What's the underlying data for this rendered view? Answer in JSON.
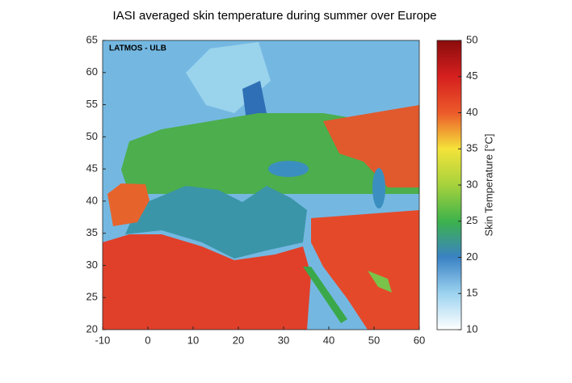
{
  "chart_data": {
    "type": "map",
    "title": "IASI averaged skin temperature during summer over Europe",
    "annotation": "LATMOS - ULB",
    "xlim": [
      -10,
      60
    ],
    "xticks": [
      -10,
      0,
      10,
      20,
      30,
      40,
      50,
      60
    ],
    "ylim": [
      20,
      65
    ],
    "yticks": [
      20,
      25,
      30,
      35,
      40,
      45,
      50,
      55,
      60,
      65
    ],
    "colorbar": {
      "label": "Skin Temperature [°C]",
      "lim": [
        10,
        50
      ],
      "ticks": [
        10,
        15,
        20,
        25,
        30,
        35,
        40,
        45,
        50
      ],
      "colors": [
        "#ffffff",
        "#9dd3f0",
        "#3a82c4",
        "#3db24c",
        "#a6d23c",
        "#f4e33a",
        "#ec5a2a",
        "#d61f1f",
        "#8a0c0c"
      ]
    }
  }
}
